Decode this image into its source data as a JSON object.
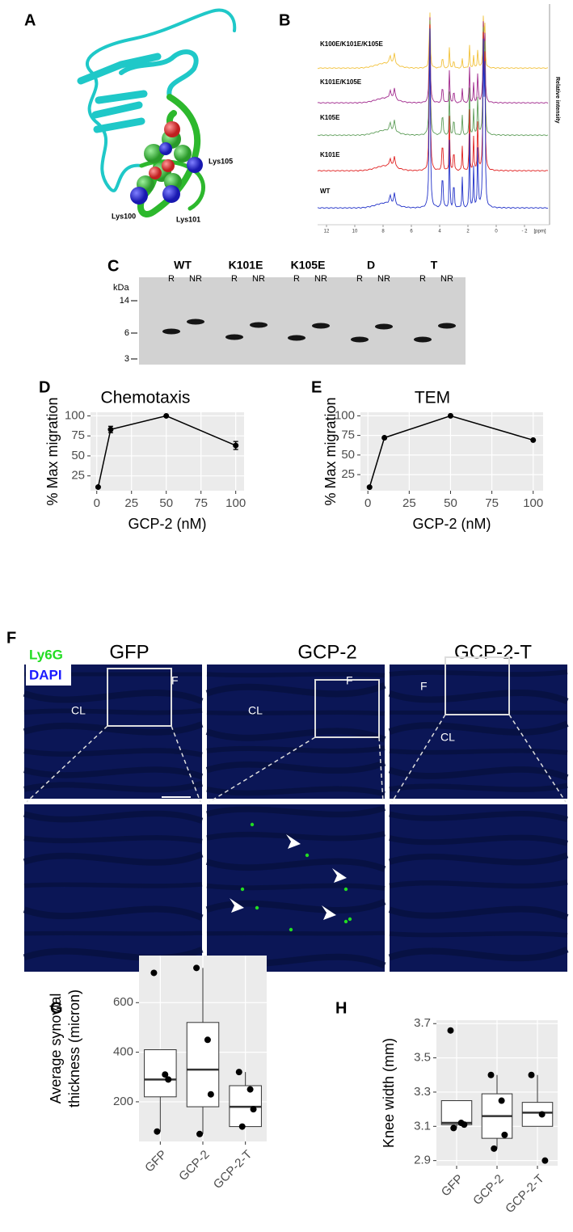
{
  "panel_labels": [
    "A",
    "B",
    "C",
    "D",
    "E",
    "F",
    "G",
    "H"
  ],
  "structure": {
    "residue_labels": [
      "Lys105",
      "Lys100",
      "Lys101"
    ]
  },
  "nmr": {
    "traces": [
      {
        "name": "K100E/K101E/K105E",
        "color": "#f2c23c"
      },
      {
        "name": "K101E/K105E",
        "color": "#a0288c"
      },
      {
        "name": "K105E",
        "color": "#5f9e5a"
      },
      {
        "name": "K101E",
        "color": "#e02020"
      },
      {
        "name": "WT",
        "color": "#2030c8"
      }
    ],
    "y_label": "Relative intensity",
    "xticks": [
      12,
      10,
      8,
      6,
      4,
      2,
      0,
      {
        "value": -2,
        "label": "- 2"
      }
    ],
    "x_unit": "[ppm]"
  },
  "gel": {
    "unit": "kDa",
    "markers": [
      14,
      6,
      3
    ],
    "lanes": [
      {
        "name": "WT",
        "conditions": [
          "R",
          "NR"
        ]
      },
      {
        "name": "K101E",
        "conditions": [
          "R",
          "NR"
        ]
      },
      {
        "name": "K105E",
        "conditions": [
          "R",
          "NR"
        ]
      },
      {
        "name": "D",
        "conditions": [
          "R",
          "NR"
        ]
      },
      {
        "name": "T",
        "conditions": [
          "R",
          "NR"
        ]
      }
    ]
  },
  "microscopy": {
    "columns": [
      {
        "title": "GFP",
        "labels": [
          "F",
          "CL"
        ]
      },
      {
        "title": "GCP-2",
        "labels": [
          "F",
          "CL"
        ]
      },
      {
        "title": "GCP-2-T",
        "labels": [
          "F",
          "CL"
        ]
      }
    ],
    "stains": [
      {
        "name": "Ly6G",
        "color": "#22dd22"
      },
      {
        "name": "DAPI",
        "color": "#1a1aff"
      }
    ]
  },
  "chart_data": [
    {
      "type": "line",
      "title": "Chemotaxis",
      "xlabel": "GCP-2 (nM)",
      "ylabel": "% Max migration",
      "x": [
        1,
        10,
        50,
        100
      ],
      "values": [
        11,
        83,
        100,
        63
      ],
      "errors": [
        null,
        4,
        null,
        5
      ],
      "color": "#000000",
      "xlim": [
        -4.5,
        106
      ],
      "ylim": [
        6.5,
        104.5
      ],
      "xticks": [
        0,
        25,
        50,
        75,
        100
      ],
      "yticks": [
        25,
        50,
        75,
        100
      ],
      "grid": true,
      "background": "#ebebeb"
    },
    {
      "type": "line",
      "title": "TEM",
      "xlabel": "GCP-2 (nM)",
      "ylabel": "% Max migration",
      "x": [
        1,
        10,
        50,
        100
      ],
      "values": [
        9,
        72,
        100,
        69
      ],
      "color": "#000000",
      "xlim": [
        -4.5,
        106
      ],
      "ylim": [
        4.5,
        104.5
      ],
      "xticks": [
        0,
        25,
        50,
        75,
        100
      ],
      "yticks": [
        25,
        50,
        75,
        100
      ],
      "grid": true,
      "background": "#ebebeb"
    },
    {
      "type": "box",
      "ylabel": [
        "Average synovial",
        "thickness (micron)"
      ],
      "categories": [
        "GFP",
        "GCP-2",
        "GCP-2-T"
      ],
      "boxes": [
        {
          "whisker_low": 80,
          "q1": 220,
          "median": 290,
          "q3": 410,
          "whisker_high": 410,
          "points": [
            720,
            310,
            290,
            80
          ]
        },
        {
          "whisker_low": 70,
          "q1": 180,
          "median": 330,
          "q3": 520,
          "whisker_high": 740,
          "points": [
            740,
            450,
            230,
            70
          ]
        },
        {
          "whisker_low": 100,
          "q1": 100,
          "median": 180,
          "q3": 265,
          "whisker_high": 320,
          "points": [
            320,
            250,
            170,
            100
          ]
        }
      ],
      "ylim": [
        40,
        790
      ],
      "yticks": [
        200,
        400,
        600
      ],
      "grid": true,
      "background": "#ebebeb"
    },
    {
      "type": "box",
      "ylabel": [
        "Knee width (mm)"
      ],
      "categories": [
        "GFP",
        "GCP-2",
        "GCP-2-T"
      ],
      "boxes": [
        {
          "whisker_low": 3.09,
          "q1": 3.11,
          "median": 3.12,
          "q3": 3.25,
          "whisker_high": 3.25,
          "points": [
            3.66,
            3.12,
            3.11,
            3.09
          ]
        },
        {
          "whisker_low": 2.97,
          "q1": 3.03,
          "median": 3.16,
          "q3": 3.29,
          "whisker_high": 3.4,
          "points": [
            3.4,
            3.25,
            3.05,
            2.97
          ]
        },
        {
          "whisker_low": 3.1,
          "q1": 3.1,
          "median": 3.18,
          "q3": 3.24,
          "whisker_high": 3.4,
          "points": [
            3.4,
            3.17,
            2.9
          ]
        }
      ],
      "ylim": [
        2.87,
        3.72
      ],
      "yticks": [
        2.9,
        3.1,
        3.3,
        3.5,
        3.7
      ],
      "grid": true,
      "background": "#ebebeb"
    }
  ]
}
